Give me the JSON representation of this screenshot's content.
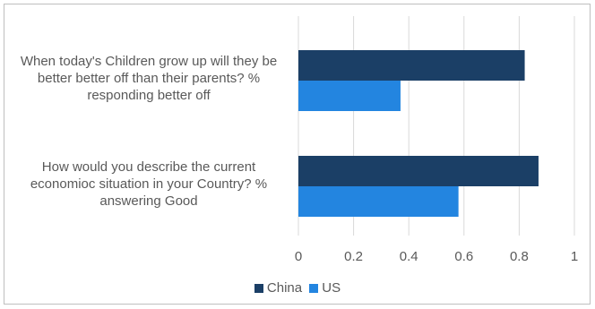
{
  "chart_data": {
    "type": "bar",
    "orientation": "horizontal",
    "categories": [
      "When today's Children grow up will they be better better off than their parents? % responding better off",
      "How would you describe the current economioc situation in your Country?  % answering Good"
    ],
    "series": [
      {
        "name": "China",
        "color": "#1b3f66",
        "values": [
          0.82,
          0.87
        ]
      },
      {
        "name": "US",
        "color": "#2385e0",
        "values": [
          0.37,
          0.58
        ]
      }
    ],
    "xlim": [
      0,
      1
    ],
    "xticks": [
      "0",
      "0.2",
      "0.4",
      "0.6",
      "0.8",
      "1"
    ],
    "grid": true,
    "legend_position": "bottom"
  }
}
